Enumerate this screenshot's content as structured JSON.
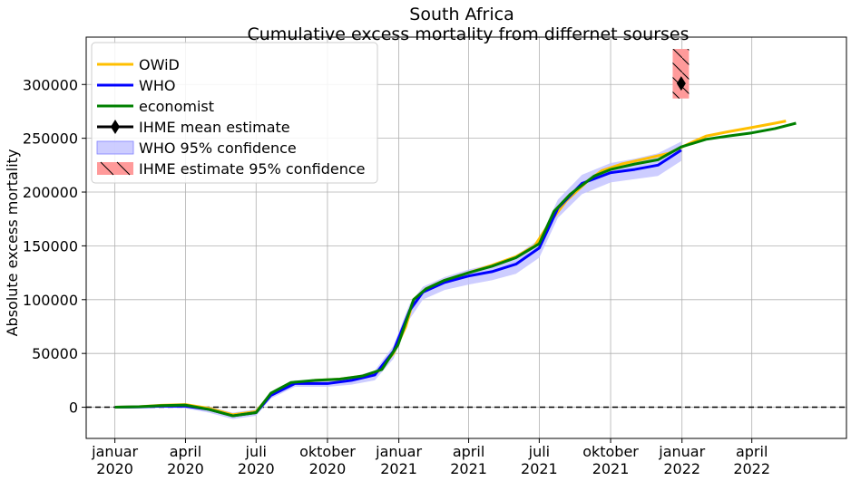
{
  "chart_data": {
    "type": "line",
    "title": "South Africa",
    "subtitle": "Cumulative excess mortality from differnet sourses",
    "ylabel": "Absolute excess mortality",
    "xlabel": "",
    "xlim": [
      "2019-11-25",
      "2022-08-01"
    ],
    "ylim": [
      -29000,
      344000
    ],
    "grid": true,
    "legend_position": "top-left",
    "reference_line": {
      "y": 0,
      "style": "dashed",
      "color": "#000000"
    },
    "x_ticks": [
      {
        "date": "2020-01-01",
        "label_month": "januar",
        "label_year": "2020"
      },
      {
        "date": "2020-04-01",
        "label_month": "april",
        "label_year": "2020"
      },
      {
        "date": "2020-07-01",
        "label_month": "juli",
        "label_year": "2020"
      },
      {
        "date": "2020-10-01",
        "label_month": "oktober",
        "label_year": "2020"
      },
      {
        "date": "2021-01-01",
        "label_month": "januar",
        "label_year": "2021"
      },
      {
        "date": "2021-04-01",
        "label_month": "april",
        "label_year": "2021"
      },
      {
        "date": "2021-07-01",
        "label_month": "juli",
        "label_year": "2021"
      },
      {
        "date": "2021-10-01",
        "label_month": "oktober",
        "label_year": "2021"
      },
      {
        "date": "2022-01-01",
        "label_month": "januar",
        "label_year": "2022"
      },
      {
        "date": "2022-04-01",
        "label_month": "april",
        "label_year": "2022"
      }
    ],
    "y_ticks": [
      0,
      50000,
      100000,
      150000,
      200000,
      250000,
      300000
    ],
    "series": [
      {
        "name": "OWiD",
        "color": "#ffbf00",
        "kind": "line",
        "points": [
          [
            "2020-01-01",
            0
          ],
          [
            "2020-02-01",
            500
          ],
          [
            "2020-03-01",
            1800
          ],
          [
            "2020-04-01",
            2500
          ],
          [
            "2020-05-01",
            -1000
          ],
          [
            "2020-06-01",
            -7000
          ],
          [
            "2020-07-01",
            -4000
          ],
          [
            "2020-07-20",
            12000
          ],
          [
            "2020-08-15",
            22000
          ],
          [
            "2020-09-15",
            25000
          ],
          [
            "2020-10-15",
            26000
          ],
          [
            "2020-11-15",
            29000
          ],
          [
            "2020-12-05",
            33000
          ],
          [
            "2020-12-25",
            50000
          ],
          [
            "2021-01-10",
            75000
          ],
          [
            "2021-01-20",
            100000
          ],
          [
            "2021-02-05",
            110000
          ],
          [
            "2021-03-01",
            118000
          ],
          [
            "2021-04-01",
            125000
          ],
          [
            "2021-05-01",
            132000
          ],
          [
            "2021-06-01",
            140000
          ],
          [
            "2021-06-25",
            150000
          ],
          [
            "2021-07-15",
            172000
          ],
          [
            "2021-08-05",
            192000
          ],
          [
            "2021-09-01",
            210000
          ],
          [
            "2021-09-20",
            220000
          ],
          [
            "2021-10-15",
            226000
          ],
          [
            "2021-11-15",
            231000
          ],
          [
            "2021-12-15",
            236000
          ],
          [
            "2022-01-10",
            245000
          ],
          [
            "2022-02-01",
            252000
          ],
          [
            "2022-03-01",
            256000
          ],
          [
            "2022-04-01",
            260000
          ],
          [
            "2022-05-01",
            264000
          ],
          [
            "2022-05-15",
            266000
          ]
        ]
      },
      {
        "name": "WHO",
        "color": "#0000ff",
        "kind": "line",
        "points": [
          [
            "2020-01-01",
            0
          ],
          [
            "2020-02-01",
            300
          ],
          [
            "2020-03-01",
            1000
          ],
          [
            "2020-04-01",
            1000
          ],
          [
            "2020-05-01",
            -2000
          ],
          [
            "2020-06-01",
            -8000
          ],
          [
            "2020-07-01",
            -5000
          ],
          [
            "2020-07-20",
            11000
          ],
          [
            "2020-08-20",
            22000
          ],
          [
            "2020-10-01",
            22000
          ],
          [
            "2020-11-01",
            25000
          ],
          [
            "2020-12-01",
            30000
          ],
          [
            "2020-12-25",
            52000
          ],
          [
            "2021-01-15",
            90000
          ],
          [
            "2021-02-01",
            107000
          ],
          [
            "2021-03-01",
            116000
          ],
          [
            "2021-04-01",
            122000
          ],
          [
            "2021-05-01",
            126000
          ],
          [
            "2021-06-01",
            133000
          ],
          [
            "2021-07-01",
            148000
          ],
          [
            "2021-07-25",
            185000
          ],
          [
            "2021-08-25",
            208000
          ],
          [
            "2021-10-01",
            218000
          ],
          [
            "2021-11-01",
            221000
          ],
          [
            "2021-12-01",
            225000
          ],
          [
            "2021-12-31",
            239000
          ]
        ]
      },
      {
        "name": "economist",
        "color": "#008000",
        "kind": "line",
        "points": [
          [
            "2020-01-01",
            0
          ],
          [
            "2020-02-01",
            500
          ],
          [
            "2020-03-01",
            1500
          ],
          [
            "2020-04-01",
            2000
          ],
          [
            "2020-05-01",
            -2000
          ],
          [
            "2020-06-01",
            -8000
          ],
          [
            "2020-07-01",
            -5000
          ],
          [
            "2020-07-20",
            13000
          ],
          [
            "2020-08-15",
            23000
          ],
          [
            "2020-09-15",
            25000
          ],
          [
            "2020-10-15",
            26000
          ],
          [
            "2020-11-15",
            29000
          ],
          [
            "2020-12-10",
            35000
          ],
          [
            "2020-12-31",
            58000
          ],
          [
            "2021-01-20",
            100000
          ],
          [
            "2021-02-05",
            110000
          ],
          [
            "2021-03-01",
            118000
          ],
          [
            "2021-04-01",
            125000
          ],
          [
            "2021-05-01",
            131000
          ],
          [
            "2021-06-01",
            139000
          ],
          [
            "2021-07-01",
            152000
          ],
          [
            "2021-07-20",
            182000
          ],
          [
            "2021-08-10",
            198000
          ],
          [
            "2021-09-10",
            215000
          ],
          [
            "2021-10-01",
            221000
          ],
          [
            "2021-11-01",
            226000
          ],
          [
            "2021-12-01",
            230000
          ],
          [
            "2021-12-31",
            242000
          ],
          [
            "2022-02-01",
            249000
          ],
          [
            "2022-03-01",
            252000
          ],
          [
            "2022-04-01",
            255000
          ],
          [
            "2022-05-01",
            259000
          ],
          [
            "2022-05-28",
            264000
          ]
        ]
      },
      {
        "name": "IHME mean estimate",
        "color": "#000000",
        "kind": "point",
        "points": [
          [
            "2021-12-31",
            301000
          ]
        ]
      },
      {
        "name": "WHO 95% confidence",
        "color": "#c0c0ff",
        "kind": "band",
        "band": [
          [
            "2020-01-01",
            -500,
            500
          ],
          [
            "2020-02-01",
            -500,
            1200
          ],
          [
            "2020-03-01",
            -500,
            2000
          ],
          [
            "2020-04-01",
            -1000,
            2500
          ],
          [
            "2020-05-01",
            -5000,
            500
          ],
          [
            "2020-06-01",
            -11000,
            -5000
          ],
          [
            "2020-07-01",
            -8000,
            -2000
          ],
          [
            "2020-07-20",
            8000,
            14000
          ],
          [
            "2020-08-20",
            19000,
            25000
          ],
          [
            "2020-10-01",
            19000,
            25000
          ],
          [
            "2020-11-01",
            21000,
            28000
          ],
          [
            "2020-12-01",
            25000,
            34000
          ],
          [
            "2020-12-25",
            45000,
            57000
          ],
          [
            "2021-01-15",
            82000,
            96000
          ],
          [
            "2021-02-01",
            100000,
            112000
          ],
          [
            "2021-03-01",
            109000,
            121000
          ],
          [
            "2021-04-01",
            114000,
            128000
          ],
          [
            "2021-05-01",
            118000,
            133000
          ],
          [
            "2021-06-01",
            124000,
            141000
          ],
          [
            "2021-07-01",
            139000,
            156000
          ],
          [
            "2021-07-25",
            176000,
            193000
          ],
          [
            "2021-08-25",
            198000,
            216000
          ],
          [
            "2021-10-01",
            209000,
            227000
          ],
          [
            "2021-11-01",
            212000,
            231000
          ],
          [
            "2021-12-01",
            215000,
            236000
          ],
          [
            "2021-12-31",
            229000,
            247000
          ]
        ]
      },
      {
        "name": " IHME estimate 95% confidence",
        "color": "#ff9a9a",
        "kind": "box",
        "box": {
          "x_from": "2021-12-20",
          "x_to": "2022-01-10",
          "y_from": 287000,
          "y_to": 333000
        }
      }
    ]
  }
}
